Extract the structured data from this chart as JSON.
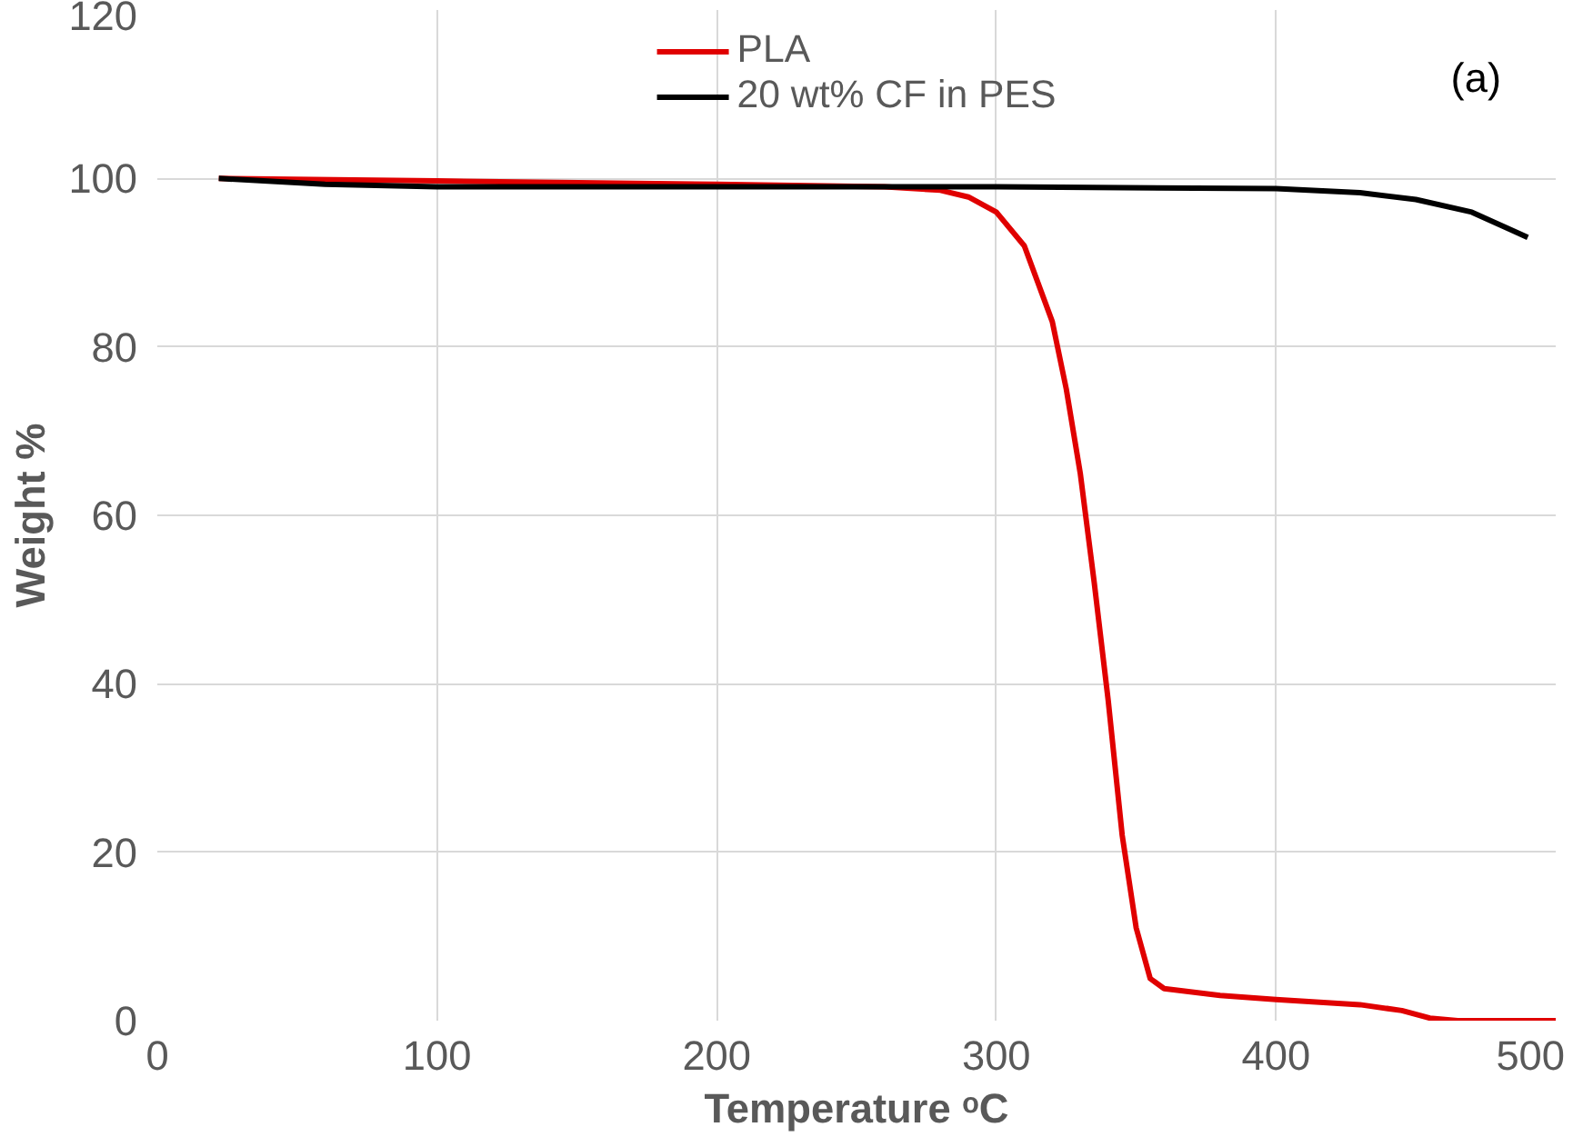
{
  "chart_data": {
    "type": "line",
    "xlabel": "Temperature ᵒC",
    "ylabel": "Weight %",
    "xlim": [
      0,
      500
    ],
    "ylim": [
      0,
      120
    ],
    "xticks": [
      0,
      100,
      200,
      300,
      400,
      500
    ],
    "yticks": [
      0,
      20,
      40,
      60,
      80,
      100,
      120
    ],
    "grid": true,
    "legend": "top",
    "annotations": [
      "(a)"
    ],
    "series": [
      {
        "name": "PLA",
        "color": "#e00000",
        "x": [
          22,
          100,
          200,
          260,
          280,
          290,
          300,
          310,
          320,
          325,
          330,
          335,
          340,
          345,
          350,
          355,
          360,
          380,
          400,
          430,
          445,
          455,
          465,
          500
        ],
        "values": [
          100,
          99.7,
          99.3,
          99,
          98.6,
          97.8,
          96,
          92,
          83,
          75,
          65,
          52,
          38,
          22,
          11,
          5,
          3.8,
          3,
          2.5,
          1.9,
          1.2,
          0.3,
          0,
          0
        ]
      },
      {
        "name": "20 wt% CF in PES",
        "color": "#000000",
        "x": [
          22,
          60,
          100,
          200,
          300,
          400,
          430,
          450,
          470,
          490
        ],
        "values": [
          100,
          99.3,
          99,
          99,
          99,
          98.8,
          98.3,
          97.5,
          96,
          93
        ]
      }
    ]
  }
}
